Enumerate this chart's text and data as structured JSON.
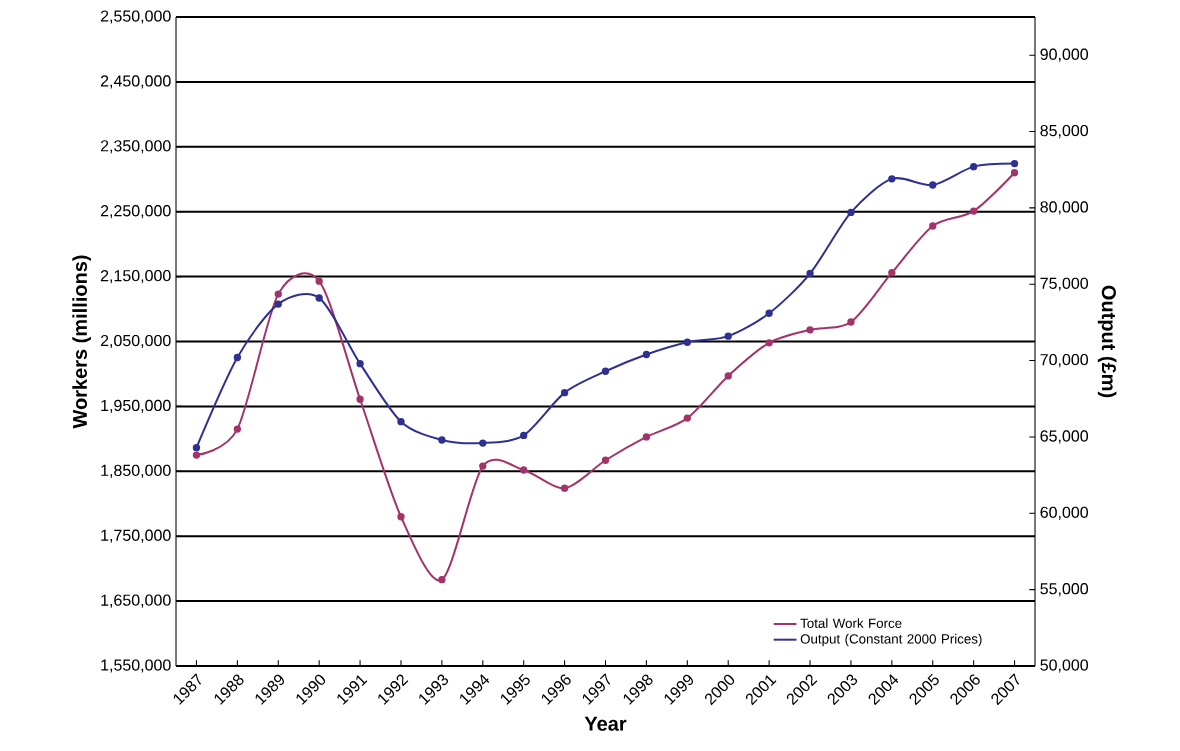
{
  "chart_data": {
    "type": "line",
    "xlabel": "Year",
    "ylabel": "Workers (millions)",
    "y2label": "Output (£m)",
    "categories": [
      "1987",
      "1988",
      "1989",
      "1990",
      "1991",
      "1992",
      "1993",
      "1994",
      "1995",
      "1996",
      "1997",
      "1998",
      "1999",
      "2000",
      "2001",
      "2002",
      "2003",
      "2004",
      "2005",
      "2006",
      "2007"
    ],
    "series": [
      {
        "name": "Total Work Force",
        "color": "#a3336b",
        "values": [
          1875000,
          1915000,
          2123000,
          2143000,
          1961000,
          1780000,
          1683000,
          1858000,
          1852000,
          1824000,
          1867000,
          1903000,
          1932000,
          1997000,
          2048000,
          2068000,
          2080000,
          2156000,
          2228000,
          2251000,
          2310000
        ]
      },
      {
        "name": "Output (Constant 2000 Prices)",
        "color": "#2e3192",
        "axis": "y2",
        "values": [
          64300,
          70200,
          73700,
          74100,
          69800,
          66000,
          64800,
          64600,
          65100,
          67900,
          69300,
          70400,
          71200,
          71600,
          73100,
          75700,
          79700,
          81900,
          81500,
          82700,
          82900
        ]
      }
    ],
    "ylim": [
      1550000,
      2550000
    ],
    "yticks": [
      {
        "value": 1550000,
        "label": "1,550,000"
      },
      {
        "value": 1650000,
        "label": "1,650,000"
      },
      {
        "value": 1750000,
        "label": "1,750,000"
      },
      {
        "value": 1850000,
        "label": "1,850,000"
      },
      {
        "value": 1950000,
        "label": "1,950,000"
      },
      {
        "value": 2050000,
        "label": "2,050,000"
      },
      {
        "value": 2150000,
        "label": "2,150,000"
      },
      {
        "value": 2250000,
        "label": "2,250,000"
      },
      {
        "value": 2350000,
        "label": "2,350,000"
      },
      {
        "value": 2450000,
        "label": "2,450,000"
      },
      {
        "value": 2550000,
        "label": "2,550,000"
      }
    ],
    "y2lim": [
      50000,
      92500
    ],
    "y2ticks": [
      {
        "value": 50000,
        "label": "50,000"
      },
      {
        "value": 55000,
        "label": "55,000"
      },
      {
        "value": 60000,
        "label": "60,000"
      },
      {
        "value": 65000,
        "label": "65,000"
      },
      {
        "value": 70000,
        "label": "70,000"
      },
      {
        "value": 75000,
        "label": "75,000"
      },
      {
        "value": 80000,
        "label": "80,000"
      },
      {
        "value": 85000,
        "label": "85,000"
      },
      {
        "value": 90000,
        "label": "90,000"
      }
    ],
    "grid": "y",
    "legend": "bottom right",
    "marker": "circle",
    "line_style": "solid"
  }
}
